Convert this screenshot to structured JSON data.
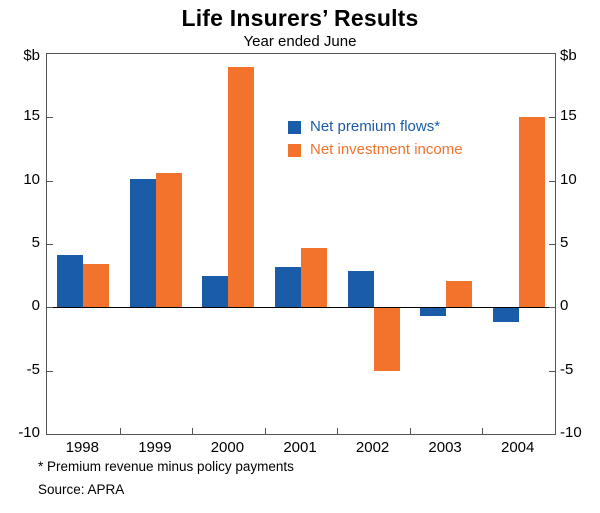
{
  "header": {
    "title": "Life Insurers’ Results",
    "subtitle": "Year ended June"
  },
  "axis": {
    "unit_left": "$b",
    "unit_right": "$b"
  },
  "legend": {
    "items": [
      {
        "label": "Net premium flows*",
        "color": "#1A5CA8"
      },
      {
        "label": "Net investment income",
        "color": "#F4732C"
      }
    ]
  },
  "footnotes": {
    "note1": "* Premium revenue minus policy payments",
    "note2": "Source: APRA"
  },
  "chart_data": {
    "type": "bar",
    "title": "Life Insurers’ Results",
    "subtitle": "Year ended June",
    "ylabel": "$b",
    "categories": [
      "1998",
      "1999",
      "2000",
      "2001",
      "2002",
      "2003",
      "2004"
    ],
    "series": [
      {
        "name": "Net premium flows*",
        "color": "#1A5CA8",
        "values": [
          4.1,
          10.1,
          2.5,
          3.2,
          2.9,
          -0.7,
          -1.2
        ]
      },
      {
        "name": "Net investment income",
        "color": "#F4732C",
        "values": [
          3.4,
          10.6,
          19.0,
          4.7,
          -5.0,
          2.1,
          15.0
        ]
      }
    ],
    "ylim": [
      -10,
      20
    ],
    "yticks": [
      -10,
      -5,
      0,
      5,
      10,
      15
    ],
    "grid": false,
    "legend_position": "inside-top-right"
  }
}
